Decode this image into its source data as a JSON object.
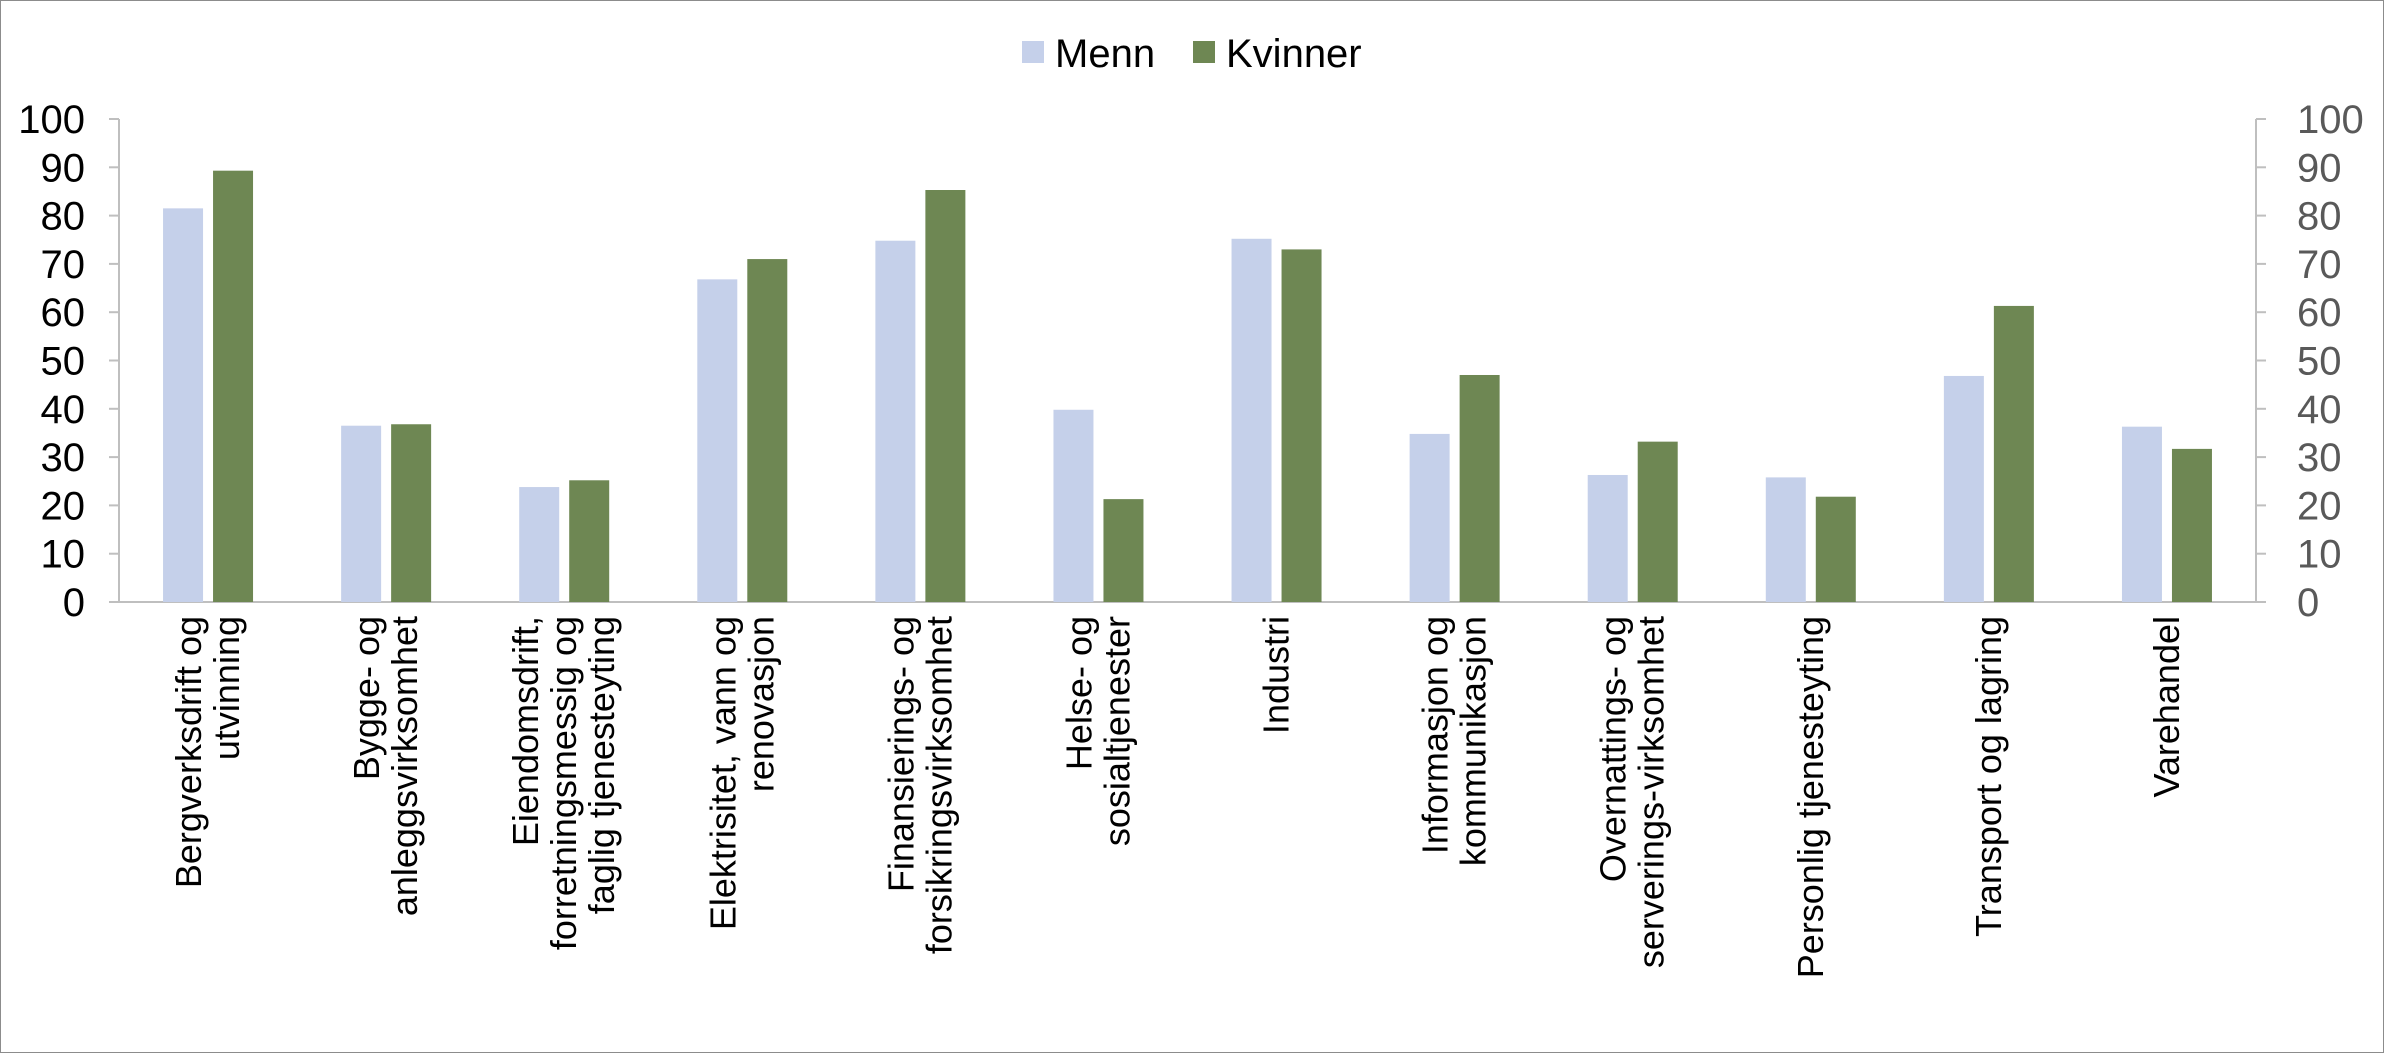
{
  "chart_data": {
    "type": "bar",
    "categories": [
      [
        "Bergverksdrift og",
        "utvinning"
      ],
      [
        "Bygge- og",
        "anleggsvirksomhet"
      ],
      [
        "Eiendomsdrift,",
        "forretningsmessig og",
        "faglig tjenesteyting"
      ],
      [
        "Elektrisitet, vann og",
        "renovasjon"
      ],
      [
        "Finansierings- og",
        "forsikringsvirksomhet"
      ],
      [
        "Helse- og",
        "sosialtjenester"
      ],
      [
        "Industri"
      ],
      [
        "Informasjon og",
        "kommunikasjon"
      ],
      [
        "Overnattings- og",
        "serverings-virksomhet"
      ],
      [
        "Personlig tjenesteyting"
      ],
      [
        "Transport og lagring"
      ],
      [
        "Varehandel"
      ]
    ],
    "series": [
      {
        "name": "Menn",
        "color": "#c5d0ea",
        "values": [
          81.5,
          36.5,
          23.8,
          66.8,
          74.8,
          39.8,
          75.2,
          34.8,
          26.3,
          25.8,
          46.8,
          36.3
        ]
      },
      {
        "name": "Kvinner",
        "color": "#6e8753",
        "values": [
          89.3,
          36.8,
          25.2,
          71.0,
          85.3,
          21.3,
          73.0,
          47.0,
          33.2,
          21.8,
          61.3,
          31.7
        ]
      }
    ],
    "ylim": [
      0,
      100
    ],
    "yticks": [
      0,
      10,
      20,
      30,
      40,
      50,
      60,
      70,
      80,
      90,
      100
    ],
    "secondary_axis": true,
    "legend_position": "top-center",
    "grid": false
  }
}
